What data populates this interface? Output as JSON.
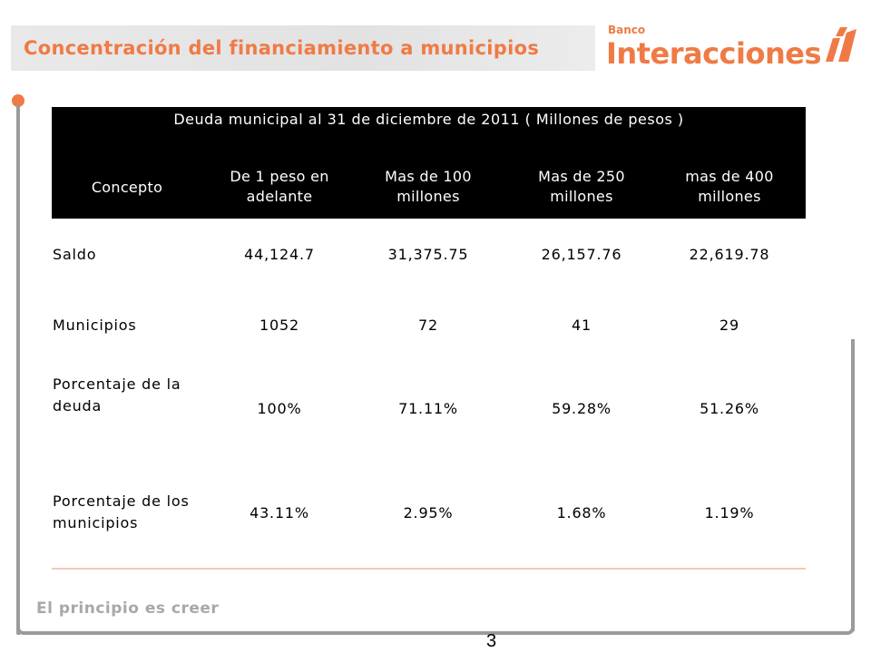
{
  "slide": {
    "title": "Concentración del financiamiento a municipios",
    "logo": {
      "small": "Banco",
      "big": "Interacciones"
    },
    "slogan": "El principio es creer",
    "page_number": "3",
    "accent_color": "#f07a45"
  },
  "table": {
    "caption": "Deuda municipal al 31 de diciembre de 2011 ( Millones de pesos )",
    "headers": [
      "Concepto",
      "De 1 peso en adelante",
      "Mas de 100 millones",
      "Mas de 250 millones",
      "mas de 400 millones"
    ],
    "rows": [
      {
        "label": "Saldo",
        "values": [
          "44,124.7",
          "31,375.75",
          "26,157.76",
          "22,619.78"
        ]
      },
      {
        "label": "Municipios",
        "values": [
          "1052",
          "72",
          "41",
          "29"
        ]
      },
      {
        "label": "Porcentaje de la deuda",
        "values": [
          "100%",
          "71.11%",
          "59.28%",
          "51.26%"
        ]
      },
      {
        "label": "Porcentaje de los municipios",
        "values": [
          "43.11%",
          "2.95%",
          "1.68%",
          "1.19%"
        ]
      }
    ]
  }
}
